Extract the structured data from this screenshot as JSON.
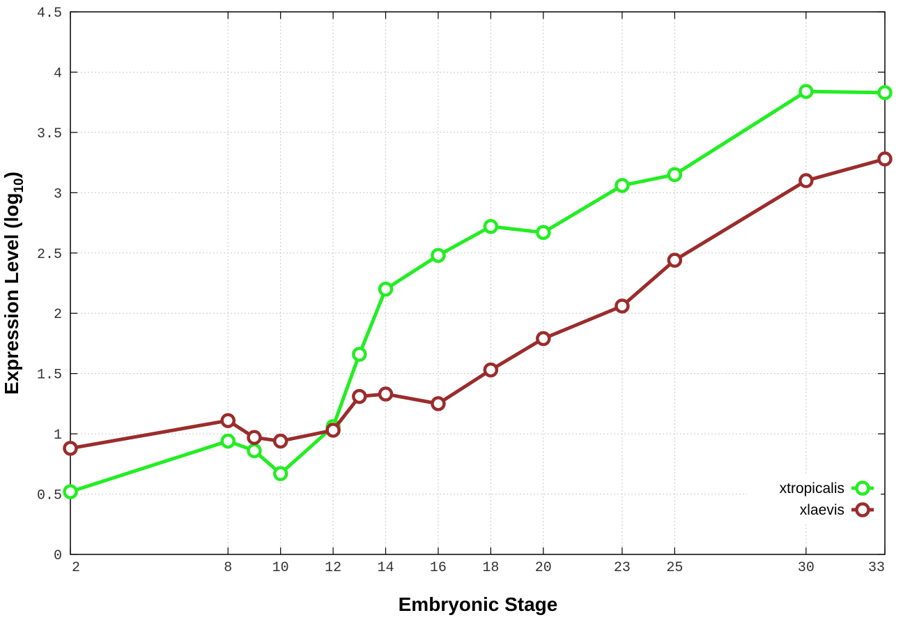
{
  "chart_data": {
    "type": "line",
    "xlabel": "Embryonic Stage",
    "ylabel": "Expression Level (log",
    "ylabel_subscript": "10",
    "ylabel_suffix": ")",
    "x": [
      2,
      8,
      9,
      10,
      12,
      13,
      14,
      16,
      18,
      20,
      23,
      25,
      30,
      33
    ],
    "x_tick_values": [
      2,
      8,
      10,
      12,
      14,
      16,
      18,
      20,
      23,
      25,
      30,
      33
    ],
    "x_tick_labels": [
      "2",
      "8",
      "10",
      "12",
      "14",
      "16",
      "18",
      "20",
      "23",
      "25",
      "30",
      "33"
    ],
    "xlim": [
      2,
      33
    ],
    "ylim": [
      0,
      4.5
    ],
    "y_tick_values": [
      0,
      0.5,
      1,
      1.5,
      2,
      2.5,
      3,
      3.5,
      4,
      4.5
    ],
    "y_tick_labels": [
      "0",
      "0.5",
      "1",
      "1.5",
      "2",
      "2.5",
      "3",
      "3.5",
      "4",
      "4.5"
    ],
    "grid": true,
    "legend_position": "bottom-right",
    "series": [
      {
        "name": "xtropicalis",
        "color": "#22ee22",
        "values": [
          0.52,
          0.94,
          0.86,
          0.67,
          1.06,
          1.66,
          2.2,
          2.48,
          2.72,
          2.67,
          3.06,
          3.15,
          3.84,
          3.83
        ]
      },
      {
        "name": "xlaevis",
        "color": "#9b2c2c",
        "values": [
          0.88,
          1.11,
          0.97,
          0.94,
          1.03,
          1.31,
          1.33,
          1.25,
          1.53,
          1.79,
          2.06,
          2.44,
          3.1,
          3.28
        ]
      }
    ]
  }
}
